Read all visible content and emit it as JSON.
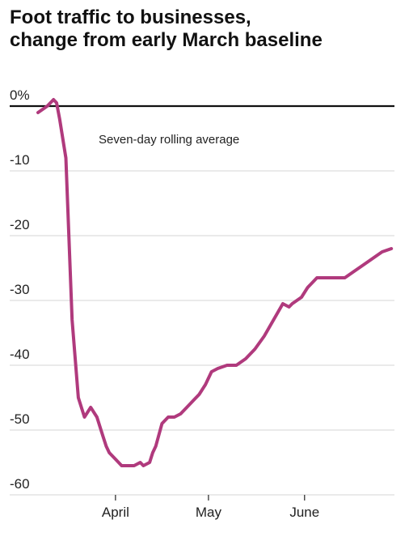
{
  "title_lines": [
    "Foot traffic to businesses,",
    "change from early March baseline"
  ],
  "colors": {
    "line": "#b03a7d",
    "grid": "#dddddd",
    "baseline": "#111111",
    "text": "#222222"
  },
  "chart_data": {
    "type": "line",
    "title": "Foot traffic to businesses, change from early March baseline",
    "annotation": "Seven-day rolling average",
    "ylim": [
      -60,
      0
    ],
    "yticks": [
      0,
      -10,
      -20,
      -30,
      -40,
      -50,
      -60
    ],
    "ytick_labels": [
      "0%",
      "-10",
      "-20",
      "-30",
      "-40",
      "-50",
      "-60"
    ],
    "xlim": [
      "2020-03-07",
      "2020-06-30"
    ],
    "xticks": [
      "2020-04-01",
      "2020-05-01",
      "2020-06-01"
    ],
    "xtick_labels": [
      "April",
      "May",
      "June"
    ],
    "grid": true,
    "series": [
      {
        "x": [
          "2020-03-07",
          "2020-03-10",
          "2020-03-12",
          "2020-03-13",
          "2020-03-14",
          "2020-03-16",
          "2020-03-18",
          "2020-03-20",
          "2020-03-22",
          "2020-03-24",
          "2020-03-26",
          "2020-03-28",
          "2020-03-29",
          "2020-03-30",
          "2020-04-01",
          "2020-04-03",
          "2020-04-05",
          "2020-04-07",
          "2020-04-09",
          "2020-04-10",
          "2020-04-12",
          "2020-04-13",
          "2020-04-14",
          "2020-04-16",
          "2020-04-18",
          "2020-04-20",
          "2020-04-22",
          "2020-04-24",
          "2020-04-26",
          "2020-04-28",
          "2020-04-30",
          "2020-05-02",
          "2020-05-04",
          "2020-05-07",
          "2020-05-10",
          "2020-05-13",
          "2020-05-16",
          "2020-05-19",
          "2020-05-22",
          "2020-05-25",
          "2020-05-27",
          "2020-05-28",
          "2020-05-31",
          "2020-06-02",
          "2020-06-05",
          "2020-06-08",
          "2020-06-11",
          "2020-06-14",
          "2020-06-17",
          "2020-06-20",
          "2020-06-23",
          "2020-06-26",
          "2020-06-29"
        ],
        "values": [
          -1,
          0,
          1,
          0.5,
          -2,
          -8,
          -33,
          -45,
          -48,
          -46.5,
          -48,
          -51,
          -52.5,
          -53.5,
          -54.5,
          -55.5,
          -55.5,
          -55.5,
          -55,
          -55.5,
          -55,
          -53.5,
          -52.5,
          -49,
          -48,
          -48,
          -47.5,
          -46.5,
          -45.5,
          -44.5,
          -43,
          -41,
          -40.5,
          -40,
          -40,
          -39,
          -37.5,
          -35.5,
          -33,
          -30.5,
          -31,
          -30.5,
          -29.5,
          -28,
          -26.5,
          -26.5,
          -26.5,
          -26.5,
          -25.5,
          -24.5,
          -23.5,
          -22.5,
          -22
        ]
      }
    ]
  }
}
